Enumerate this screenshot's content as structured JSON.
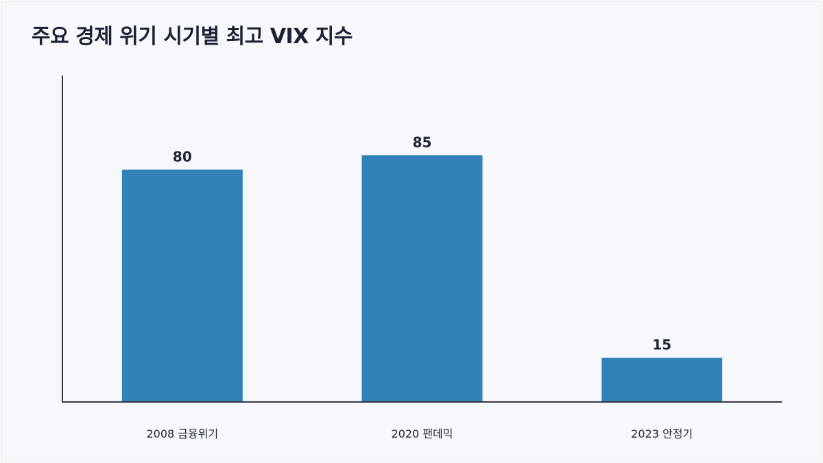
{
  "chart_data": {
    "type": "bar",
    "title": "주요 경제 위기 시기별 최고 VIX 지수",
    "categories": [
      "2008 금융위기",
      "2020 팬데믹",
      "2023 안정기"
    ],
    "values": [
      80,
      85,
      15
    ],
    "data_labels": [
      "80",
      "85",
      "15"
    ],
    "ylim": [
      0,
      100
    ],
    "xlabel": "",
    "ylabel": "",
    "grid": false,
    "legend": "none",
    "bar_color": "#3282b8",
    "axis_color": "#333645"
  }
}
